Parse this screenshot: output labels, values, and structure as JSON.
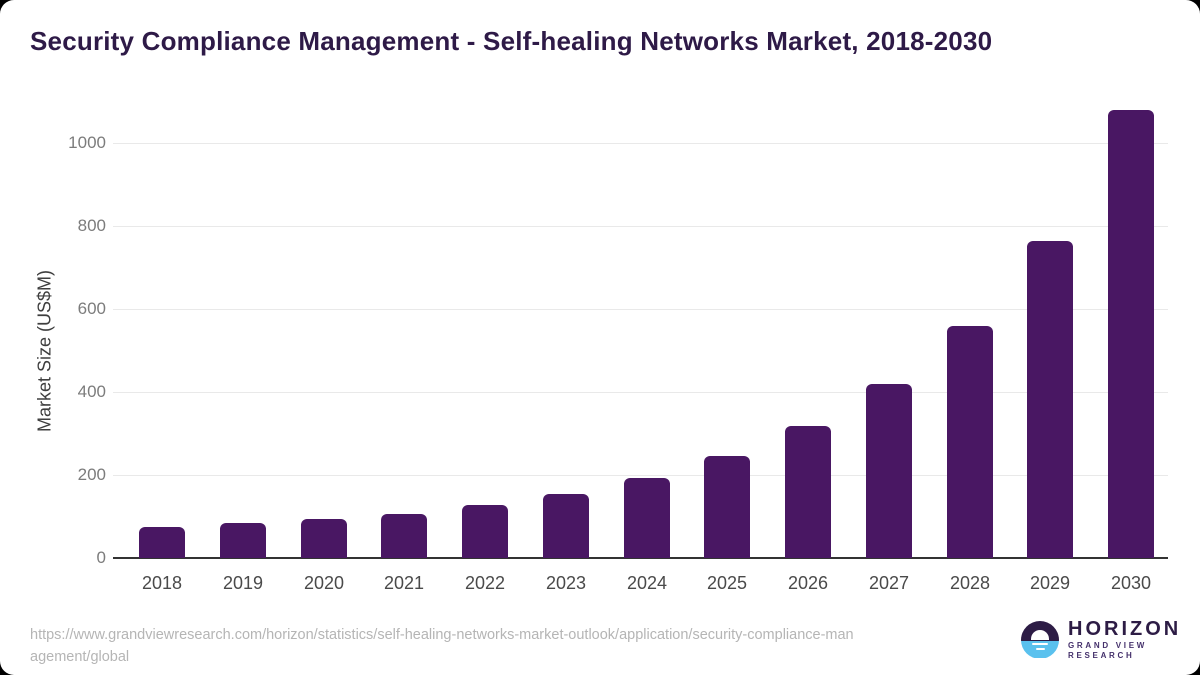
{
  "page": {
    "background_color": "#000000",
    "card_color": "#ffffff"
  },
  "header": {
    "title": "Security Compliance Management - Self-healing Networks Market, 2018-2030",
    "title_color": "#2e1a47"
  },
  "chart_data": {
    "type": "bar",
    "title": "Security Compliance Management - Self-healing Networks Market, 2018-2030",
    "categories": [
      "2018",
      "2019",
      "2020",
      "2021",
      "2022",
      "2023",
      "2024",
      "2025",
      "2026",
      "2027",
      "2028",
      "2029",
      "2030"
    ],
    "values": [
      75,
      84,
      94,
      107,
      128,
      155,
      192,
      246,
      317,
      419,
      558,
      765,
      1080
    ],
    "xlabel": "",
    "ylabel": "Market Size (US$M)",
    "yticks": [
      0,
      200,
      400,
      600,
      800,
      1000
    ],
    "ylim": [
      0,
      1100
    ],
    "bar_color": "#491763",
    "grid": "horizontal-light",
    "legend_position": "none"
  },
  "source": {
    "lines": [
      "https://www.grandviewresearch.com/horizon/statistics/self-healing-networks-market-outlook/application/security-compliance-man",
      "agement/global"
    ]
  },
  "logo": {
    "brand": "HORIZON",
    "subtitle": "GRAND VIEW RESEARCH",
    "dark_color": "#2d1c45",
    "blue_color": "#5ac1ee"
  }
}
